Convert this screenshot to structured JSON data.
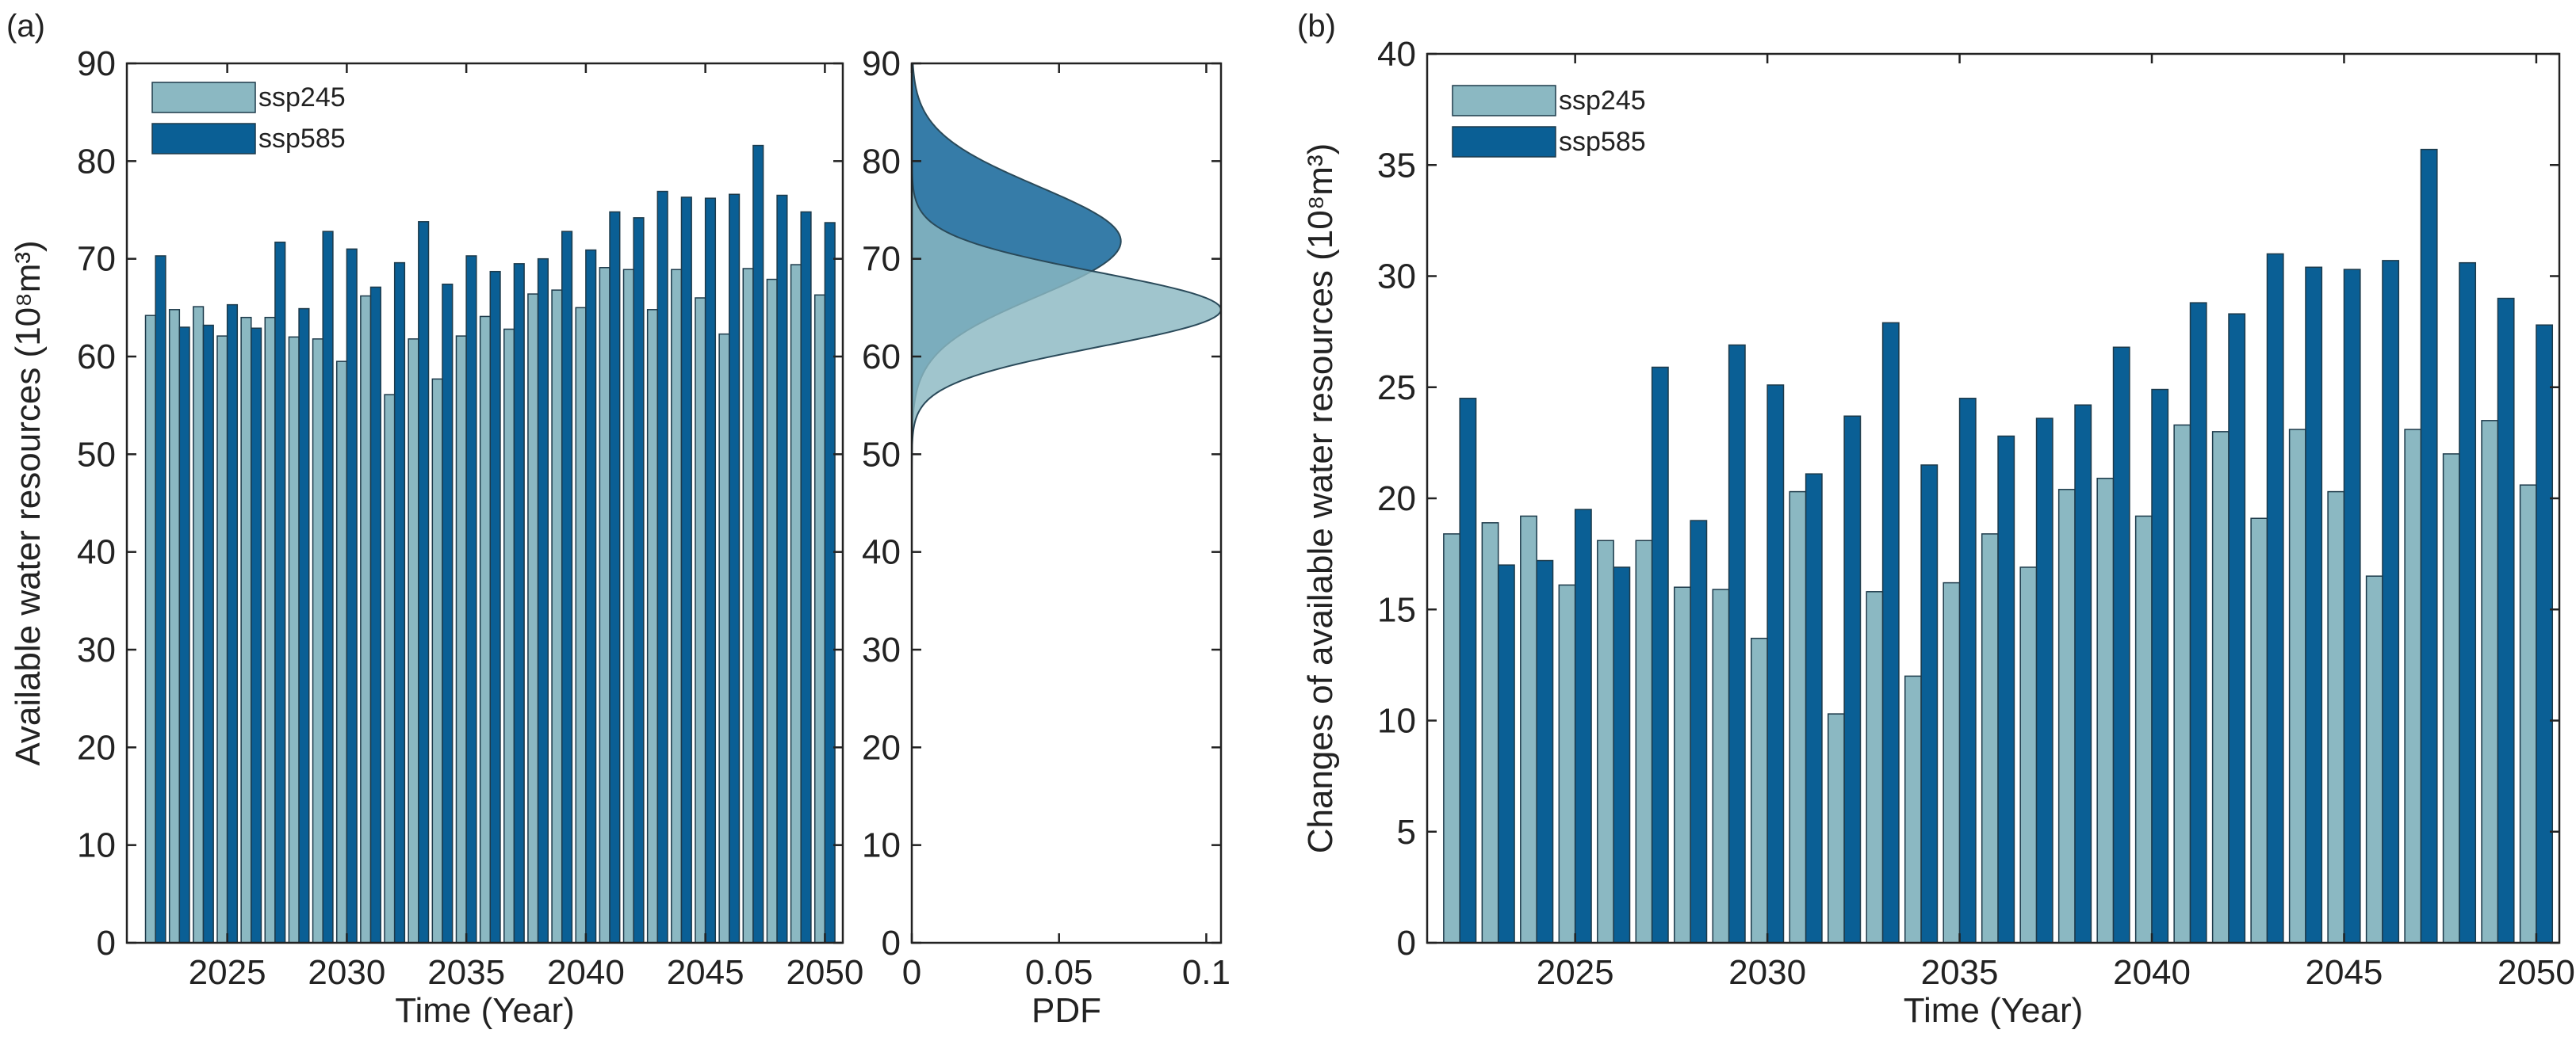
{
  "chart_data": [
    {
      "id": "a",
      "panel_label": "(a)",
      "type": "bar",
      "xlabel": "Time (Year)",
      "ylabel": "Available water resources (10⁸m³)",
      "ylim": [
        0,
        90
      ],
      "yticks": [
        0,
        10,
        20,
        30,
        40,
        50,
        60,
        70,
        80,
        90
      ],
      "xticks": [
        2025,
        2030,
        2035,
        2040,
        2045,
        2050
      ],
      "x": [
        2022,
        2023,
        2024,
        2025,
        2026,
        2027,
        2028,
        2029,
        2030,
        2031,
        2032,
        2033,
        2034,
        2035,
        2036,
        2037,
        2038,
        2039,
        2040,
        2041,
        2042,
        2043,
        2044,
        2045,
        2046,
        2047,
        2048,
        2049,
        2050
      ],
      "series": [
        {
          "name": "ssp245",
          "color": "#8bb8c2",
          "values": [
            64.2,
            64.8,
            65.1,
            62.1,
            64.0,
            64.0,
            62.0,
            61.8,
            59.5,
            66.2,
            56.1,
            61.8,
            57.7,
            62.1,
            64.1,
            62.8,
            66.4,
            66.8,
            65.0,
            69.1,
            68.9,
            64.8,
            68.9,
            66.0,
            62.3,
            69.0,
            67.9,
            69.4,
            66.3
          ]
        },
        {
          "name": "ssp585",
          "color": "#0a5f95",
          "values": [
            70.3,
            63.0,
            63.2,
            65.3,
            62.9,
            71.7,
            64.9,
            72.8,
            71.0,
            67.1,
            69.6,
            73.8,
            67.4,
            70.3,
            68.7,
            69.5,
            70.0,
            72.8,
            70.9,
            74.8,
            74.2,
            76.9,
            76.3,
            76.2,
            76.6,
            81.6,
            76.5,
            74.8,
            73.7
          ]
        }
      ],
      "legend_position": "top-left"
    },
    {
      "id": "pdf",
      "type": "area",
      "xlabel": "PDF",
      "ylim": [
        0,
        90
      ],
      "xlim": [
        0,
        0.105
      ],
      "yticks": [
        0,
        10,
        20,
        30,
        40,
        50,
        60,
        70,
        80,
        90
      ],
      "xticks": [
        0,
        0.05,
        0.1
      ],
      "xtick_labels": [
        "0",
        "0.05",
        "0.1"
      ],
      "series": [
        {
          "name": "ssp245",
          "color": "#8bb8c2",
          "mean": 64.8,
          "sd": 3.8,
          "peak": 0.105
        },
        {
          "name": "ssp585",
          "color": "#0a5f95",
          "mean": 71.8,
          "sd": 5.6,
          "peak": 0.071
        }
      ]
    },
    {
      "id": "b",
      "panel_label": "(b)",
      "type": "bar",
      "xlabel": "Time (Year)",
      "ylabel": "Changes of available water resources (10⁸m³)",
      "ylim": [
        0,
        40
      ],
      "yticks": [
        0,
        5,
        10,
        15,
        20,
        25,
        30,
        35,
        40
      ],
      "xticks": [
        2025,
        2030,
        2035,
        2040,
        2045,
        2050
      ],
      "x": [
        2022,
        2023,
        2024,
        2025,
        2026,
        2027,
        2028,
        2029,
        2030,
        2031,
        2032,
        2033,
        2034,
        2035,
        2036,
        2037,
        2038,
        2039,
        2040,
        2041,
        2042,
        2043,
        2044,
        2045,
        2046,
        2047,
        2048,
        2049,
        2050
      ],
      "series": [
        {
          "name": "ssp245",
          "color": "#8bb8c2",
          "values": [
            18.4,
            18.9,
            19.2,
            16.1,
            18.1,
            18.1,
            16.0,
            15.9,
            13.7,
            20.3,
            10.3,
            15.8,
            12.0,
            16.2,
            18.4,
            16.9,
            20.4,
            20.9,
            19.2,
            23.3,
            23.0,
            19.1,
            23.1,
            20.3,
            16.5,
            23.1,
            22.0,
            23.5,
            20.6
          ]
        },
        {
          "name": "ssp585",
          "color": "#0a5f95",
          "values": [
            24.5,
            17.0,
            17.2,
            19.5,
            16.9,
            25.9,
            19.0,
            26.9,
            25.1,
            21.1,
            23.7,
            27.9,
            21.5,
            24.5,
            22.8,
            23.6,
            24.2,
            26.8,
            24.9,
            28.8,
            28.3,
            31.0,
            30.4,
            30.3,
            30.7,
            35.7,
            30.6,
            29.0,
            27.8
          ]
        }
      ],
      "legend_position": "top-left"
    }
  ]
}
